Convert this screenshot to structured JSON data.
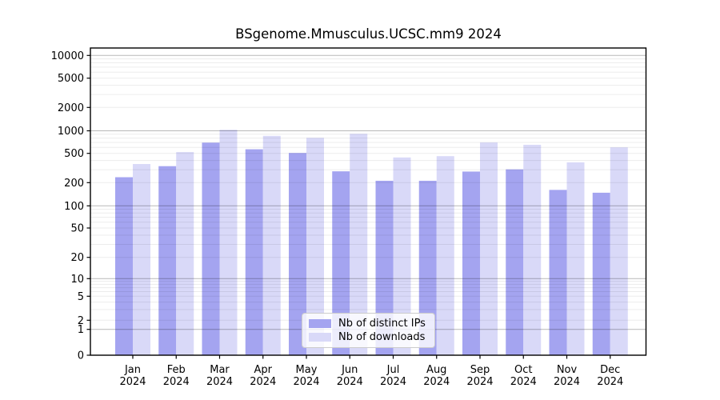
{
  "title": "BSgenome.Mmusculus.UCSC.mm9 2024",
  "chart_data": {
    "type": "bar",
    "title": "BSgenome.Mmusculus.UCSC.mm9 2024",
    "categories": [
      "Jan",
      "Feb",
      "Mar",
      "Apr",
      "May",
      "Jun",
      "Jul",
      "Aug",
      "Sep",
      "Oct",
      "Nov",
      "Dec"
    ],
    "x_sublabel": "2024",
    "series": [
      {
        "name": "Nb of distinct IPs",
        "color": "#a4a4f0",
        "values": [
          237,
          335,
          695,
          567,
          506,
          285,
          212,
          212,
          283,
          303,
          161,
          148
        ]
      },
      {
        "name": "Nb of downloads",
        "color": "#d9d9f8",
        "values": [
          358,
          520,
          1032,
          856,
          805,
          912,
          440,
          458,
          698,
          651,
          377,
          601
        ]
      }
    ],
    "y_ticks": [
      0,
      1,
      2,
      5,
      10,
      20,
      50,
      100,
      200,
      500,
      1000,
      2000,
      5000,
      10000
    ],
    "y_scale": "symlog",
    "ylim": [
      0,
      13000
    ],
    "xlabel": "",
    "ylabel": "",
    "grid": true,
    "grid_major_color": "#b9b9b9",
    "grid_minor_color": "#ececec",
    "legend_position": "lower center",
    "legend": {
      "items": [
        {
          "label": "Nb of distinct IPs",
          "color": "#a4a4f0"
        },
        {
          "label": "Nb of downloads",
          "color": "#d9d9f8"
        }
      ]
    }
  }
}
